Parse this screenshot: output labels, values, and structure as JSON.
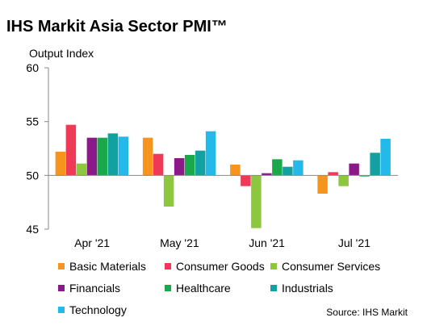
{
  "chart_data": {
    "type": "bar",
    "title": "IHS Markit Asia Sector PMI™",
    "ylabel": "Output Index",
    "xlabel": "",
    "ylim": [
      45,
      60
    ],
    "yticks": [
      45,
      50,
      55,
      60
    ],
    "baseline": 50,
    "categories": [
      "Apr '21",
      "May '21",
      "Jun '21",
      "Jul '21"
    ],
    "series": [
      {
        "name": "Basic Materials",
        "color": "#f7941d",
        "values": [
          52.2,
          53.5,
          51.0,
          48.3
        ]
      },
      {
        "name": "Consumer Goods",
        "color": "#ee3a57",
        "values": [
          54.7,
          52.0,
          49.0,
          50.3
        ]
      },
      {
        "name": "Consumer Services",
        "color": "#8dc63f",
        "values": [
          51.1,
          47.1,
          45.1,
          49.0
        ]
      },
      {
        "name": "Financials",
        "color": "#8b1a89",
        "values": [
          53.5,
          51.6,
          50.2,
          51.1
        ]
      },
      {
        "name": "Healthcare",
        "color": "#1aa84b",
        "values": [
          53.5,
          51.9,
          51.5,
          49.9
        ]
      },
      {
        "name": "Industrials",
        "color": "#13a0a0",
        "values": [
          53.9,
          52.3,
          50.8,
          52.1
        ]
      },
      {
        "name": "Technology",
        "color": "#25b9ea",
        "values": [
          53.6,
          54.1,
          51.4,
          53.4
        ]
      }
    ],
    "legend_position": "bottom",
    "grid": false
  },
  "source": "Source: IHS Markit"
}
